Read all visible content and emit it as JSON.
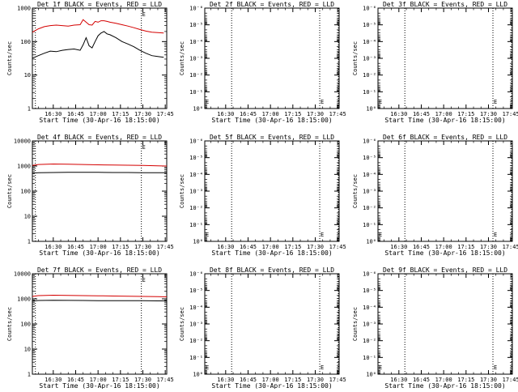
{
  "chart_data": [
    {
      "type": "line",
      "title": "Det 1f BLACK = Events, RED = LLD",
      "xlabel": "Start Time (30-Apr-16 18:15:00)",
      "ylabel": "Counts/sec",
      "yscale": "log",
      "ylim": [
        1,
        1000
      ],
      "y_ticks": [
        "1",
        "10",
        "100",
        "1000"
      ],
      "xlim_minutes": [
        16,
        106
      ],
      "x_ticks": [
        "16:30",
        "16:45",
        "17:00",
        "17:15",
        "17:30",
        "17:45"
      ],
      "x_tick_minutes": [
        30,
        45,
        60,
        75,
        90,
        105
      ],
      "dotted_vlines_minutes": [
        18,
        89
      ],
      "marker": "E",
      "series": [
        {
          "color": "#000000",
          "x": [
            16,
            20,
            24,
            28,
            32,
            36,
            40,
            44,
            48,
            50,
            52,
            54,
            56,
            58,
            60,
            62,
            64,
            66,
            68,
            72,
            76,
            80,
            84,
            88,
            92,
            96,
            100,
            104
          ],
          "y": [
            32,
            38,
            45,
            52,
            50,
            55,
            58,
            60,
            55,
            80,
            130,
            75,
            65,
            100,
            150,
            180,
            200,
            170,
            160,
            130,
            100,
            85,
            70,
            55,
            45,
            38,
            36,
            34
          ]
        },
        {
          "color": "#d40000",
          "x": [
            16,
            20,
            24,
            28,
            32,
            36,
            40,
            44,
            48,
            50,
            52,
            54,
            56,
            58,
            60,
            62,
            64,
            66,
            68,
            72,
            76,
            80,
            84,
            88,
            92,
            96,
            100,
            104
          ],
          "y": [
            190,
            240,
            280,
            300,
            310,
            300,
            290,
            310,
            320,
            450,
            380,
            320,
            310,
            400,
            380,
            420,
            420,
            400,
            380,
            350,
            320,
            290,
            260,
            230,
            205,
            190,
            185,
            180
          ]
        }
      ]
    },
    {
      "type": "line",
      "title": "Det 2f BLACK = Events, RED = LLD",
      "xlabel": "Start Time (30-Apr-16 18:15:00)",
      "ylabel": "Counts/sec",
      "yscale": "log",
      "ylim": [
        1,
        1e-06
      ],
      "y_ticks": [
        "10⁰",
        "10⁻¹",
        "10⁻²",
        "10⁻³",
        "10⁻⁴",
        "10⁻⁵",
        "10⁻⁶"
      ],
      "xlim_minutes": [
        16,
        106
      ],
      "x_ticks": [
        "16:30",
        "16:45",
        "17:00",
        "17:15",
        "17:30",
        "17:45"
      ],
      "x_tick_minutes": [
        30,
        45,
        60,
        75,
        90,
        105
      ],
      "dotted_vlines_minutes": [
        34,
        93,
        106
      ],
      "marker": "E",
      "series": []
    },
    {
      "type": "line",
      "title": "Det 3f BLACK = Events, RED = LLD",
      "xlabel": "Start Time (30-Apr-16 18:15:00)",
      "ylabel": "Counts/sec",
      "yscale": "log",
      "ylim": [
        1,
        1e-06
      ],
      "y_ticks": [
        "10⁰",
        "10⁻¹",
        "10⁻²",
        "10⁻³",
        "10⁻⁴",
        "10⁻⁵",
        "10⁻⁶"
      ],
      "xlim_minutes": [
        16,
        106
      ],
      "x_ticks": [
        "16:30",
        "16:45",
        "17:00",
        "17:15",
        "17:30",
        "17:45"
      ],
      "x_tick_minutes": [
        30,
        45,
        60,
        75,
        90,
        105
      ],
      "dotted_vlines_minutes": [
        34,
        93,
        106
      ],
      "marker": "E",
      "series": []
    },
    {
      "type": "line",
      "title": "Det 4f BLACK = Events, RED = LLD",
      "xlabel": "Start Time (30-Apr-16 18:15:00)",
      "ylabel": "Counts/sec",
      "yscale": "log",
      "ylim": [
        1,
        10000
      ],
      "y_ticks": [
        "1",
        "10",
        "100",
        "1000",
        "10000"
      ],
      "xlim_minutes": [
        16,
        106
      ],
      "x_ticks": [
        "16:30",
        "16:45",
        "17:00",
        "17:15",
        "17:30",
        "17:45"
      ],
      "x_tick_minutes": [
        30,
        45,
        60,
        75,
        90,
        105
      ],
      "dotted_vlines_minutes": [
        18,
        89
      ],
      "marker": "E",
      "series": [
        {
          "color": "#000000",
          "x": [
            16,
            20,
            30,
            40,
            50,
            60,
            70,
            80,
            90,
            100,
            106
          ],
          "y": [
            520,
            540,
            550,
            560,
            560,
            560,
            550,
            550,
            545,
            540,
            540
          ]
        },
        {
          "color": "#d40000",
          "x": [
            16,
            20,
            30,
            40,
            50,
            60,
            70,
            80,
            90,
            100,
            106
          ],
          "y": [
            1050,
            1150,
            1200,
            1180,
            1150,
            1120,
            1100,
            1080,
            1050,
            1020,
            1000
          ]
        }
      ]
    },
    {
      "type": "line",
      "title": "Det 5f BLACK = Events, RED = LLD",
      "xlabel": "Start Time (30-Apr-16 18:15:00)",
      "ylabel": "Counts/sec",
      "yscale": "log",
      "ylim": [
        1,
        1e-06
      ],
      "y_ticks": [
        "10⁰",
        "10⁻¹",
        "10⁻²",
        "10⁻³",
        "10⁻⁴",
        "10⁻⁵",
        "10⁻⁶"
      ],
      "xlim_minutes": [
        16,
        106
      ],
      "x_ticks": [
        "16:30",
        "16:45",
        "17:00",
        "17:15",
        "17:30",
        "17:45"
      ],
      "x_tick_minutes": [
        30,
        45,
        60,
        75,
        90,
        105
      ],
      "dotted_vlines_minutes": [
        34,
        93,
        106
      ],
      "marker": "E",
      "series": []
    },
    {
      "type": "line",
      "title": "Det 6f BLACK = Events, RED = LLD",
      "xlabel": "Start Time (30-Apr-16 18:15:00)",
      "ylabel": "Counts/sec",
      "yscale": "log",
      "ylim": [
        1,
        1e-06
      ],
      "y_ticks": [
        "10⁰",
        "10⁻¹",
        "10⁻²",
        "10⁻³",
        "10⁻⁴",
        "10⁻⁵",
        "10⁻⁶"
      ],
      "xlim_minutes": [
        16,
        106
      ],
      "x_ticks": [
        "16:30",
        "16:45",
        "17:00",
        "17:15",
        "17:30",
        "17:45"
      ],
      "x_tick_minutes": [
        30,
        45,
        60,
        75,
        90,
        105
      ],
      "dotted_vlines_minutes": [
        34,
        93,
        106
      ],
      "marker": "E",
      "series": []
    },
    {
      "type": "line",
      "title": "Det 7f BLACK = Events, RED = LLD",
      "xlabel": "Start Time (30-Apr-16 18:15:00)",
      "ylabel": "Counts/sec",
      "yscale": "log",
      "ylim": [
        1,
        10000
      ],
      "y_ticks": [
        "1",
        "10",
        "100",
        "1000",
        "10000"
      ],
      "xlim_minutes": [
        16,
        106
      ],
      "x_ticks": [
        "16:30",
        "16:45",
        "17:00",
        "17:15",
        "17:30",
        "17:45"
      ],
      "x_tick_minutes": [
        30,
        45,
        60,
        75,
        90,
        105
      ],
      "dotted_vlines_minutes": [
        18,
        89
      ],
      "marker": "E",
      "series": [
        {
          "color": "#000000",
          "x": [
            16,
            20,
            30,
            40,
            50,
            60,
            70,
            80,
            90,
            100,
            106
          ],
          "y": [
            820,
            860,
            880,
            870,
            860,
            850,
            850,
            840,
            840,
            830,
            830
          ]
        },
        {
          "color": "#d40000",
          "x": [
            16,
            20,
            30,
            40,
            50,
            60,
            70,
            80,
            90,
            100,
            106
          ],
          "y": [
            1250,
            1350,
            1400,
            1380,
            1350,
            1330,
            1300,
            1280,
            1250,
            1220,
            1200
          ]
        }
      ]
    },
    {
      "type": "line",
      "title": "Det 8f BLACK = Events, RED = LLD",
      "xlabel": "Start Time (30-Apr-16 18:15:00)",
      "ylabel": "Counts/sec",
      "yscale": "log",
      "ylim": [
        1,
        1e-06
      ],
      "y_ticks": [
        "10⁰",
        "10⁻¹",
        "10⁻²",
        "10⁻³",
        "10⁻⁴",
        "10⁻⁵",
        "10⁻⁶"
      ],
      "xlim_minutes": [
        16,
        106
      ],
      "x_ticks": [
        "16:30",
        "16:45",
        "17:00",
        "17:15",
        "17:30",
        "17:45"
      ],
      "x_tick_minutes": [
        30,
        45,
        60,
        75,
        90,
        105
      ],
      "dotted_vlines_minutes": [
        34,
        93,
        106
      ],
      "marker": "E",
      "series": []
    },
    {
      "type": "line",
      "title": "Det 9f BLACK = Events, RED = LLD",
      "xlabel": "Start Time (30-Apr-16 18:15:00)",
      "ylabel": "Counts/sec",
      "yscale": "log",
      "ylim": [
        1,
        1e-06
      ],
      "y_ticks": [
        "10⁰",
        "10⁻¹",
        "10⁻²",
        "10⁻³",
        "10⁻⁴",
        "10⁻⁵",
        "10⁻⁶"
      ],
      "xlim_minutes": [
        16,
        106
      ],
      "x_ticks": [
        "16:30",
        "16:45",
        "17:00",
        "17:15",
        "17:30",
        "17:45"
      ],
      "x_tick_minutes": [
        30,
        45,
        60,
        75,
        90,
        105
      ],
      "dotted_vlines_minutes": [
        34,
        93,
        106
      ],
      "marker": "E",
      "series": []
    }
  ]
}
